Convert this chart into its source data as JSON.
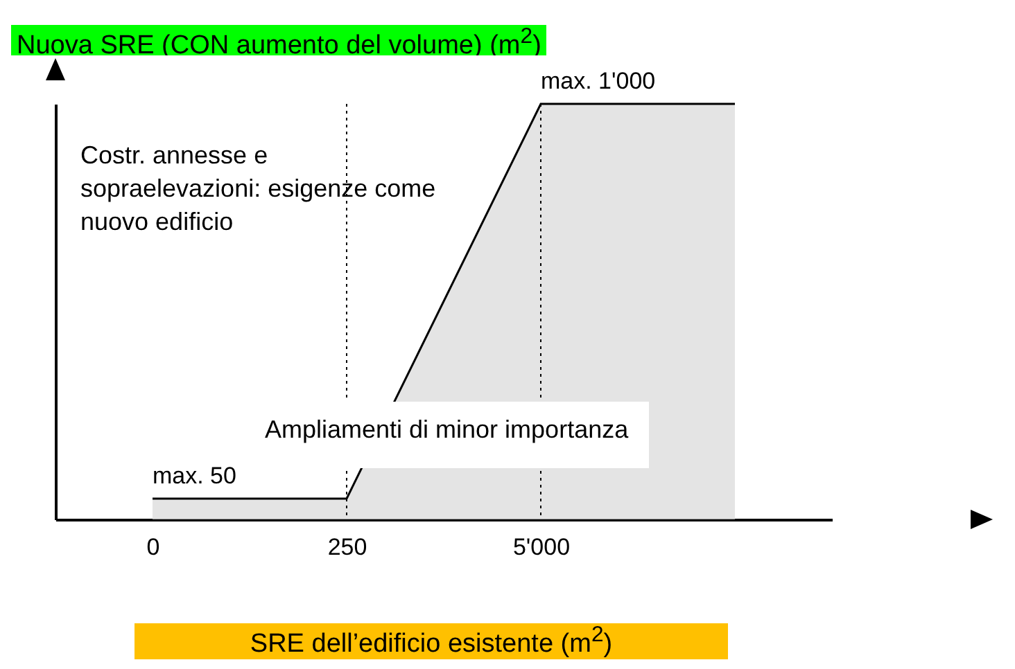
{
  "chart_data": {
    "type": "area",
    "xlabel": "SRE dell’edificio esistente (m$^{2}$)",
    "ylabel": "Nuova SRE (CON aumento del volume) (m$^{2}$)",
    "categories": [
      "0",
      "250",
      "5'000",
      null
    ],
    "values": [
      50,
      50,
      1000,
      1000
    ],
    "value_labels": [
      "max. 50",
      null,
      "max. 1'000",
      null
    ],
    "color": "#d9d9d9",
    "ref_lines": [
      {
        "axis": "x",
        "value": "250",
        "line_style": "dotted"
      },
      {
        "axis": "x",
        "value": "5'000",
        "line_style": "dotted"
      }
    ],
    "annotations": [
      "Costr. annesse e sopraelevazioni: esigenze come nuovo edificio",
      "Ampliamenti di minor importanza"
    ],
    "grid": false
  }
}
